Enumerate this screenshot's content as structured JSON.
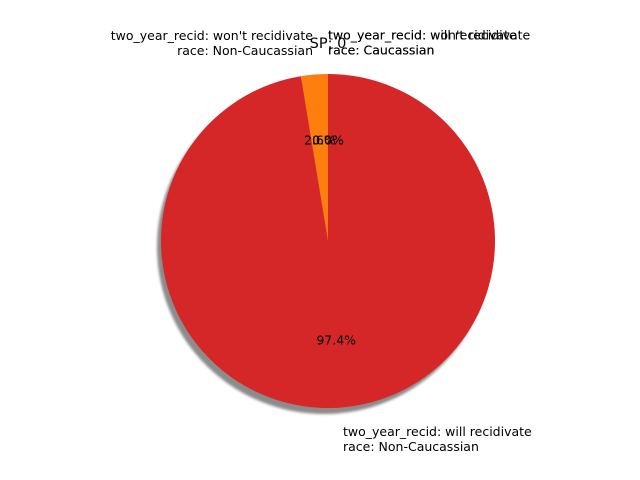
{
  "chart_data": {
    "type": "pie",
    "title": "SP: 0",
    "start_angle_deg": 90,
    "direction": "counterclockwise",
    "shadow": true,
    "slices": [
      {
        "label_lines": [
          "two_year_recid: won't recidivate",
          "race: Non-Caucassian"
        ],
        "value": 2.6,
        "pct_label": "2.6%",
        "color": "#ff7f0e"
      },
      {
        "label_lines": [
          "two_year_recid: will recidivate",
          "race: Non-Caucassian"
        ],
        "value": 97.4,
        "pct_label": "97.4%",
        "color": "#d62728"
      },
      {
        "label_lines": [
          "two_year_recid: won't recidivate",
          "race: Caucassian"
        ],
        "value": 0.0,
        "pct_label": "0.0%",
        "color": "#1f77b4"
      },
      {
        "label_lines": [
          "two_year_recid: will recidivate",
          "race: Caucassian"
        ],
        "value": 0.0,
        "pct_label": "0.0%",
        "color": "#2ca02c"
      }
    ]
  }
}
